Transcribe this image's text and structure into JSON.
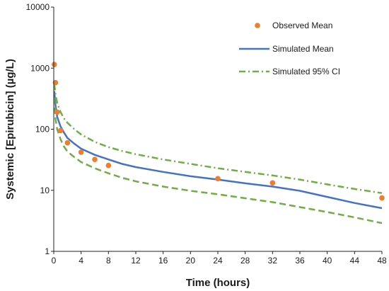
{
  "chart_data": {
    "type": "scatter+line",
    "xlabel": "Time (hours)",
    "ylabel": "Systemic [Epirubicin] (µg/L)",
    "xlim": [
      0,
      48
    ],
    "x_ticks": [
      0,
      4,
      8,
      12,
      16,
      20,
      24,
      28,
      32,
      36,
      40,
      44,
      48
    ],
    "ylim": [
      1,
      10000
    ],
    "y_scale": "log",
    "y_ticks": [
      1,
      10,
      100,
      1000,
      10000
    ],
    "grid": false,
    "legend_position": "top-right",
    "series": [
      {
        "name": "Observed Mean",
        "kind": "points",
        "color": "#ED7D31",
        "x": [
          0.083,
          0.25,
          0.5,
          1,
          2,
          4,
          6,
          8,
          24,
          32,
          48
        ],
        "y": [
          1150,
          580,
          190,
          95,
          60,
          42,
          32,
          25.5,
          15.5,
          13.2,
          7.5
        ]
      },
      {
        "name": "Simulated Mean",
        "kind": "line",
        "style": "solid",
        "color": "#4472C4",
        "x": [
          0.083,
          0.25,
          0.5,
          1,
          1.5,
          2,
          3,
          4,
          6,
          8,
          10,
          12,
          16,
          20,
          24,
          28,
          32,
          36,
          40,
          44,
          48
        ],
        "y": [
          420,
          250,
          160,
          110,
          88,
          72,
          58,
          48,
          38,
          32,
          27,
          24,
          20,
          17,
          15,
          13,
          11.5,
          9.8,
          7.8,
          6.2,
          5.1
        ]
      },
      {
        "name": "Simulated 95% CI",
        "kind": "line",
        "style": "dash-dot",
        "color": "#70AD47",
        "x": [
          0.083,
          0.25,
          0.5,
          1,
          1.5,
          2,
          3,
          4,
          6,
          8,
          10,
          12,
          16,
          20,
          24,
          28,
          32,
          36,
          40,
          44,
          48
        ],
        "y": [
          550,
          380,
          270,
          190,
          150,
          128,
          100,
          82,
          62,
          51,
          44,
          39,
          32,
          27,
          23,
          20,
          17.5,
          15,
          12.5,
          10.5,
          9
        ]
      },
      {
        "name": "",
        "kind": "line",
        "style": "dash",
        "color": "#70AD47",
        "x": [
          0.083,
          0.25,
          0.5,
          1,
          1.5,
          2,
          3,
          4,
          6,
          8,
          10,
          12,
          16,
          20,
          24,
          28,
          32,
          36,
          40,
          44,
          48
        ],
        "y": [
          330,
          150,
          100,
          68,
          52,
          43,
          35,
          29,
          23,
          19,
          16,
          14,
          11.5,
          9.8,
          8.6,
          7.4,
          6.4,
          5.3,
          4.4,
          3.6,
          2.9
        ]
      }
    ],
    "legend": [
      {
        "label": "Observed Mean",
        "marker": "circle",
        "color": "#ED7D31"
      },
      {
        "label": "Simulated Mean",
        "marker": "solid",
        "color": "#4472C4"
      },
      {
        "label": "Simulated 95% CI",
        "marker": "dash-dot",
        "color": "#70AD47"
      }
    ]
  }
}
